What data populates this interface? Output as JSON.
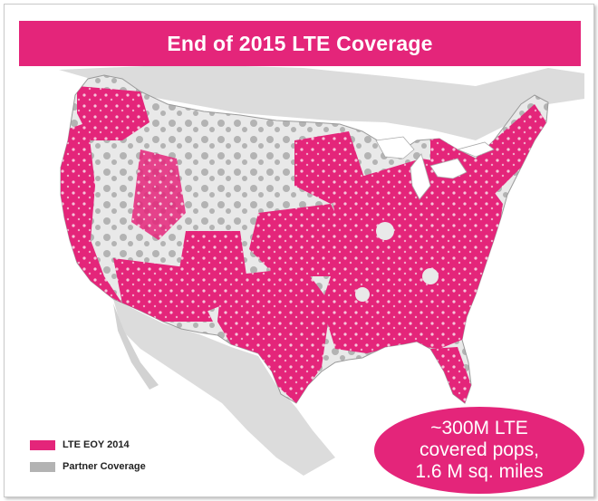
{
  "title": "End of 2015 LTE Coverage",
  "legend": {
    "items": [
      {
        "label": "LTE EOY 2014",
        "color": "#e4257a"
      },
      {
        "label": "Partner Coverage",
        "color": "#b3b3b3"
      }
    ]
  },
  "callout": {
    "line1": "~300M LTE",
    "line2": "covered pops,",
    "line3": "1.6 M sq. miles"
  },
  "colors": {
    "lte": "#e4257a",
    "partner": "#b3b3b3",
    "land": "#e9e9e9",
    "neighbor": "#d9d9d9"
  }
}
